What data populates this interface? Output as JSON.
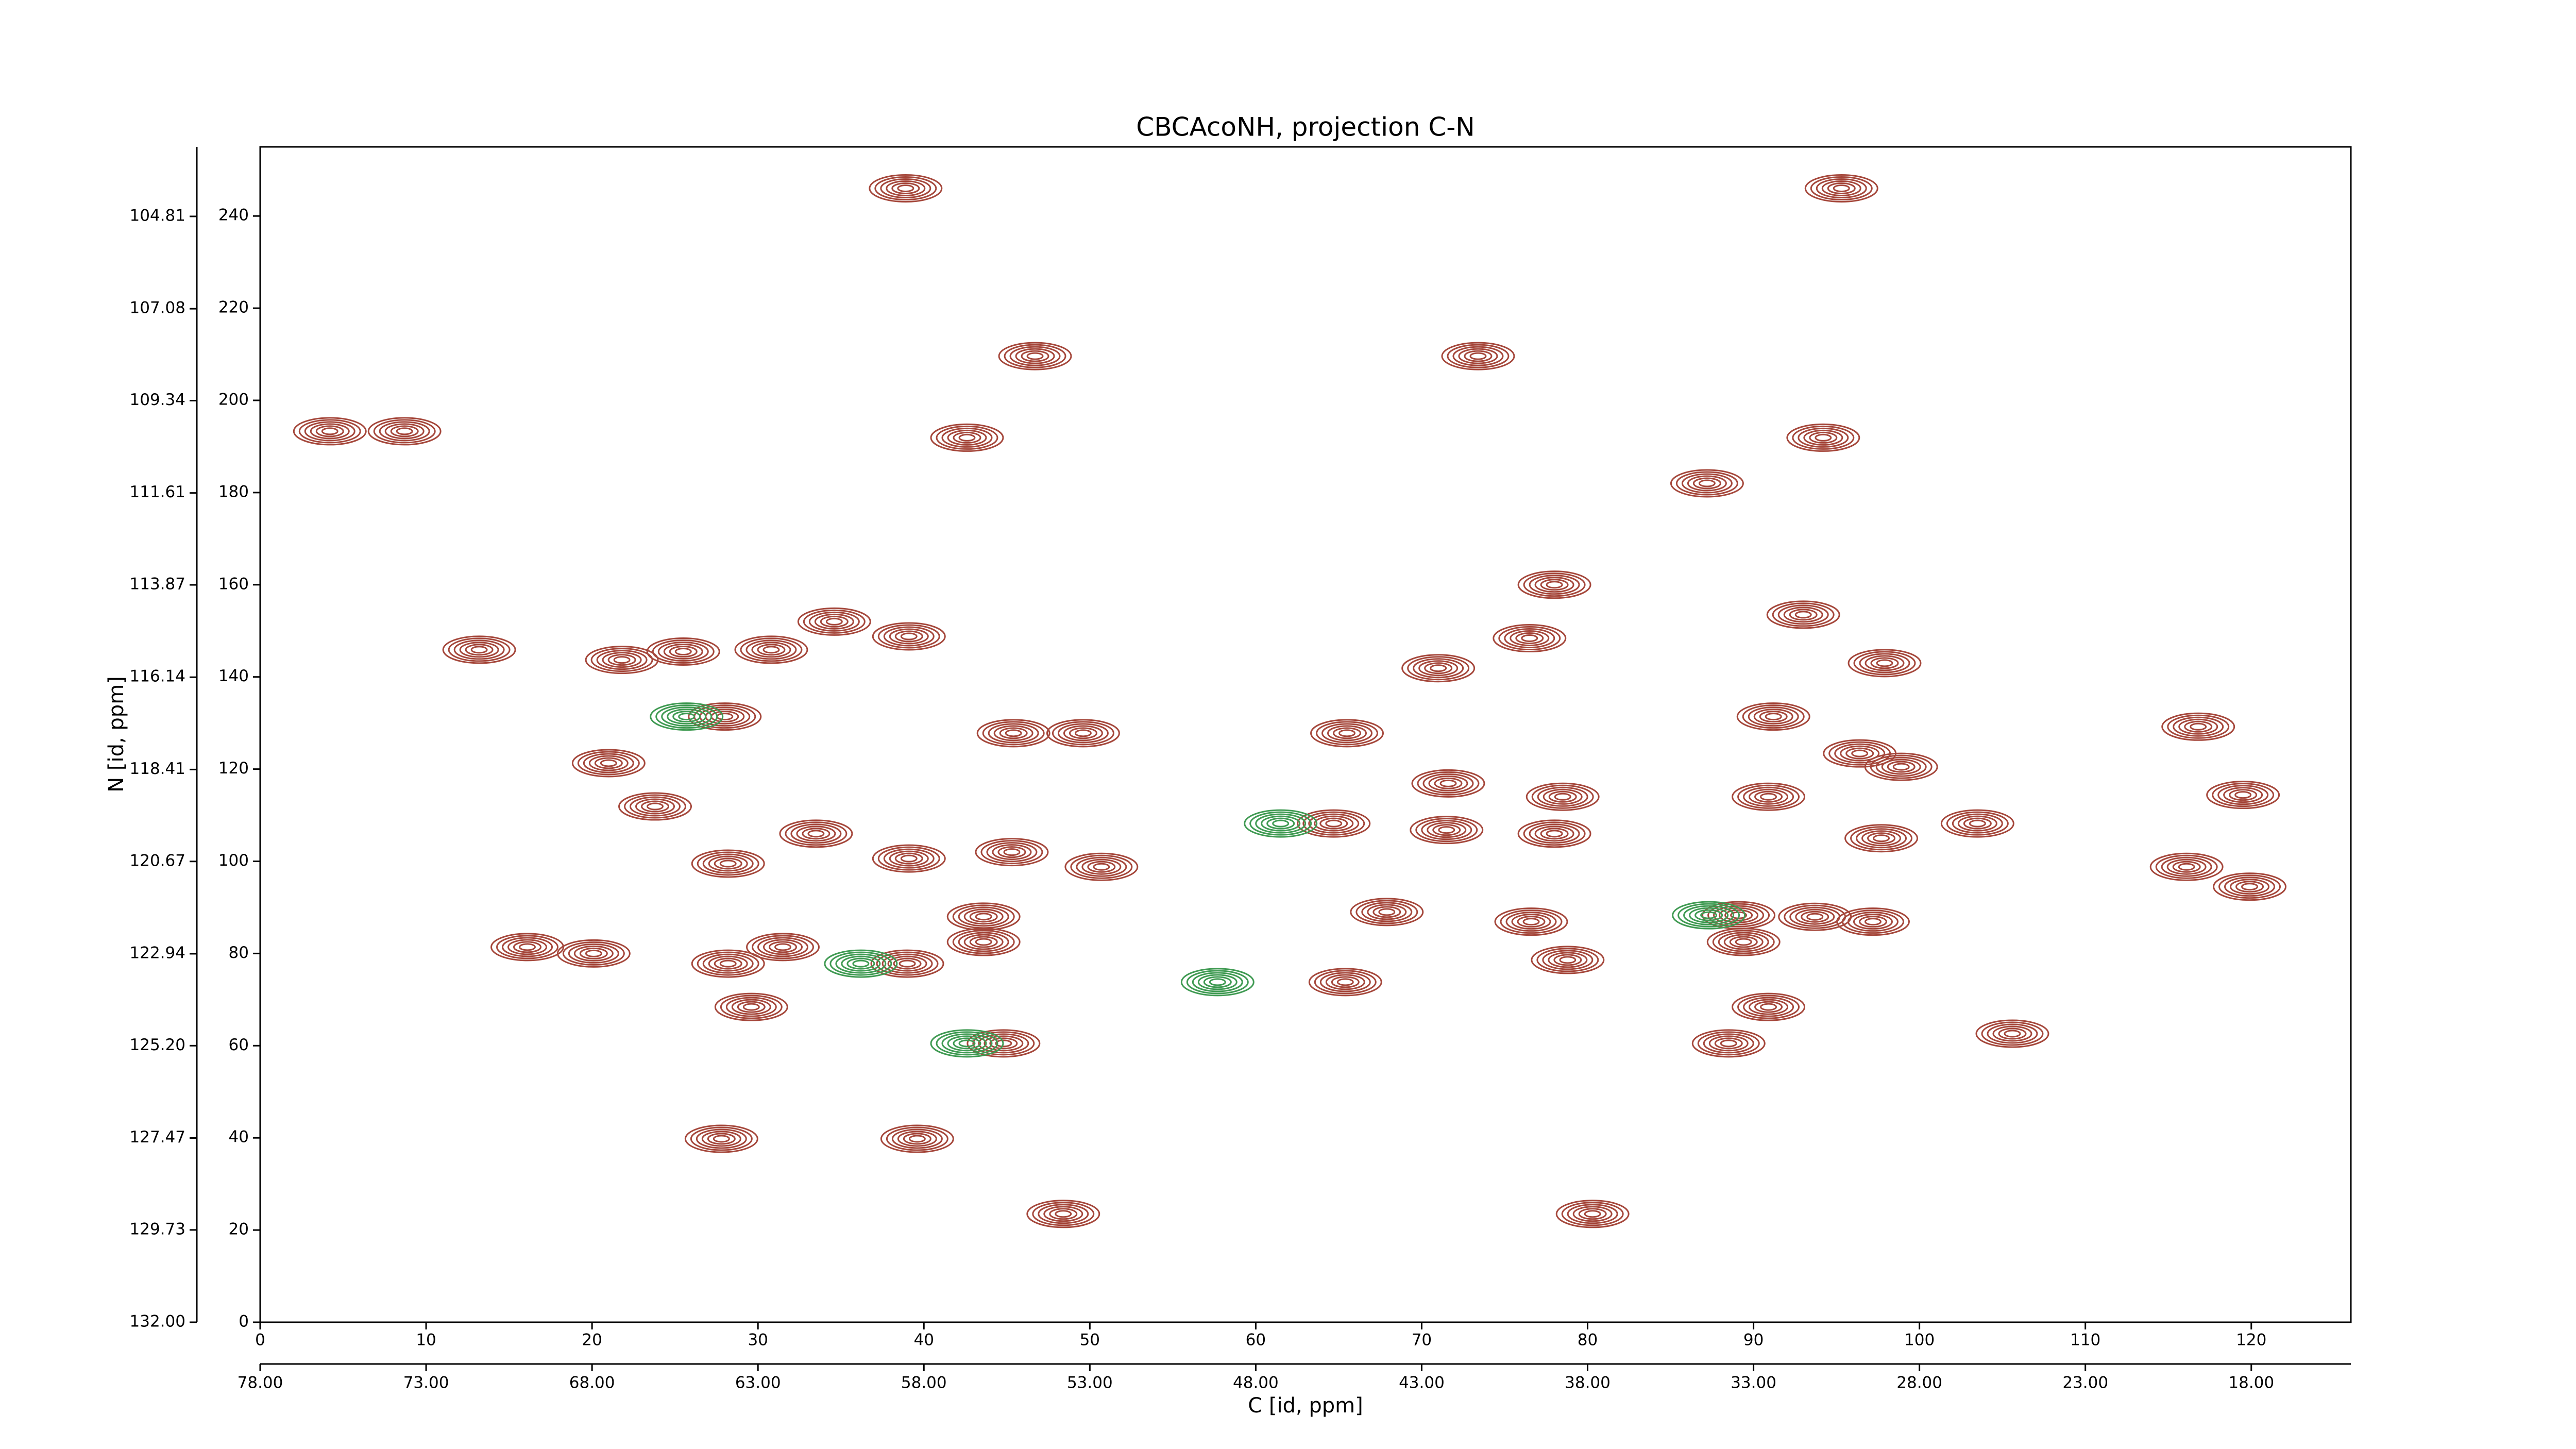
{
  "chart_data": {
    "type": "contour",
    "title": "CBCAcoNH, projection C-N",
    "xlabel": "C [id, ppm]",
    "ylabel": "N [id, ppm]",
    "xlim": [
      0,
      126
    ],
    "xticks": [
      0,
      10,
      20,
      30,
      40,
      50,
      60,
      70,
      80,
      90,
      100,
      110,
      120
    ],
    "ylim": [
      0,
      255
    ],
    "yticks": [
      0,
      20,
      40,
      60,
      80,
      100,
      120,
      140,
      160,
      180,
      200,
      220,
      240
    ],
    "x2lim": [
      78,
      15
    ],
    "x2ticks": [
      {
        "value": 78,
        "label": "78.00"
      },
      {
        "value": 73,
        "label": "73.00"
      },
      {
        "value": 68,
        "label": "68.00"
      },
      {
        "value": 63,
        "label": "63.00"
      },
      {
        "value": 58,
        "label": "58.00"
      },
      {
        "value": 53,
        "label": "53.00"
      },
      {
        "value": 48,
        "label": "48.00"
      },
      {
        "value": 43,
        "label": "43.00"
      },
      {
        "value": 38,
        "label": "38.00"
      },
      {
        "value": 33,
        "label": "33.00"
      },
      {
        "value": 28,
        "label": "28.00"
      },
      {
        "value": 23,
        "label": "23.00"
      },
      {
        "value": 18,
        "label": "18.00"
      }
    ],
    "y2lim": [
      132,
      103.1
    ],
    "y2ticks": [
      {
        "value": 132,
        "label": "132.00"
      },
      129.73,
      127.47,
      {
        "value": 125.2,
        "label": "125.20"
      },
      122.94,
      120.67,
      118.41,
      116.14,
      113.87,
      111.61,
      109.34,
      107.08,
      104.81
    ],
    "series": [
      {
        "color": "#a5473b",
        "x": [
          38.9,
          95.3,
          46.7,
          73.4,
          4.2,
          8.7,
          42.6,
          94.2,
          13.2,
          21.8,
          25.5,
          30.8,
          34.6,
          39.1,
          76.5,
          71,
          28,
          49.6,
          45.4,
          65.5,
          91.2,
          93,
          97.9,
          116.8,
          21,
          23.8,
          96.4,
          98.9,
          119.5,
          90.9,
          78.5,
          71.6,
          33.5,
          28.2,
          39.1,
          50.7,
          64.7,
          71.5,
          78,
          103.5,
          116.1,
          119.9,
          97.2,
          93.7,
          89.1,
          89.4,
          76.6,
          78.8,
          67.9,
          43.6,
          43.6,
          16.1,
          20.1,
          31.5,
          28.2,
          39,
          65.4,
          29.6,
          90.9,
          44.8,
          88.5,
          105.6,
          27.8,
          39.6,
          48.4,
          80.3,
          87.2,
          78,
          97.7,
          45.3
        ],
        "values": [
          246,
          246,
          209.6,
          209.6,
          193.3,
          193.3,
          191.9,
          191.9,
          145.9,
          143.7,
          145.5,
          145.9,
          152,
          148.8,
          148.4,
          141.9,
          131.4,
          127.8,
          127.8,
          127.8,
          131.4,
          153.5,
          143,
          129.2,
          121.3,
          111.9,
          123.4,
          120.5,
          114.4,
          114,
          114,
          116.9,
          106,
          99.5,
          100.6,
          98.8,
          108.2,
          106.8,
          106,
          108.2,
          98.8,
          94.5,
          86.9,
          87.96,
          88.3,
          82.5,
          86.9,
          78.6,
          89,
          88,
          82.5,
          81.4,
          80,
          81.4,
          77.8,
          77.8,
          73.8,
          68.4,
          68.4,
          60.5,
          60.5,
          62.6,
          39.8,
          39.8,
          23.5,
          23.5,
          182,
          160,
          105,
          102
        ]
      },
      {
        "color": "#3f9a52",
        "x": [
          25.7,
          61.5,
          57.7,
          42.6,
          87.3,
          36.2
        ],
        "values": [
          131.4,
          108.2,
          73.8,
          60.5,
          88.3,
          77.8
        ]
      }
    ]
  }
}
